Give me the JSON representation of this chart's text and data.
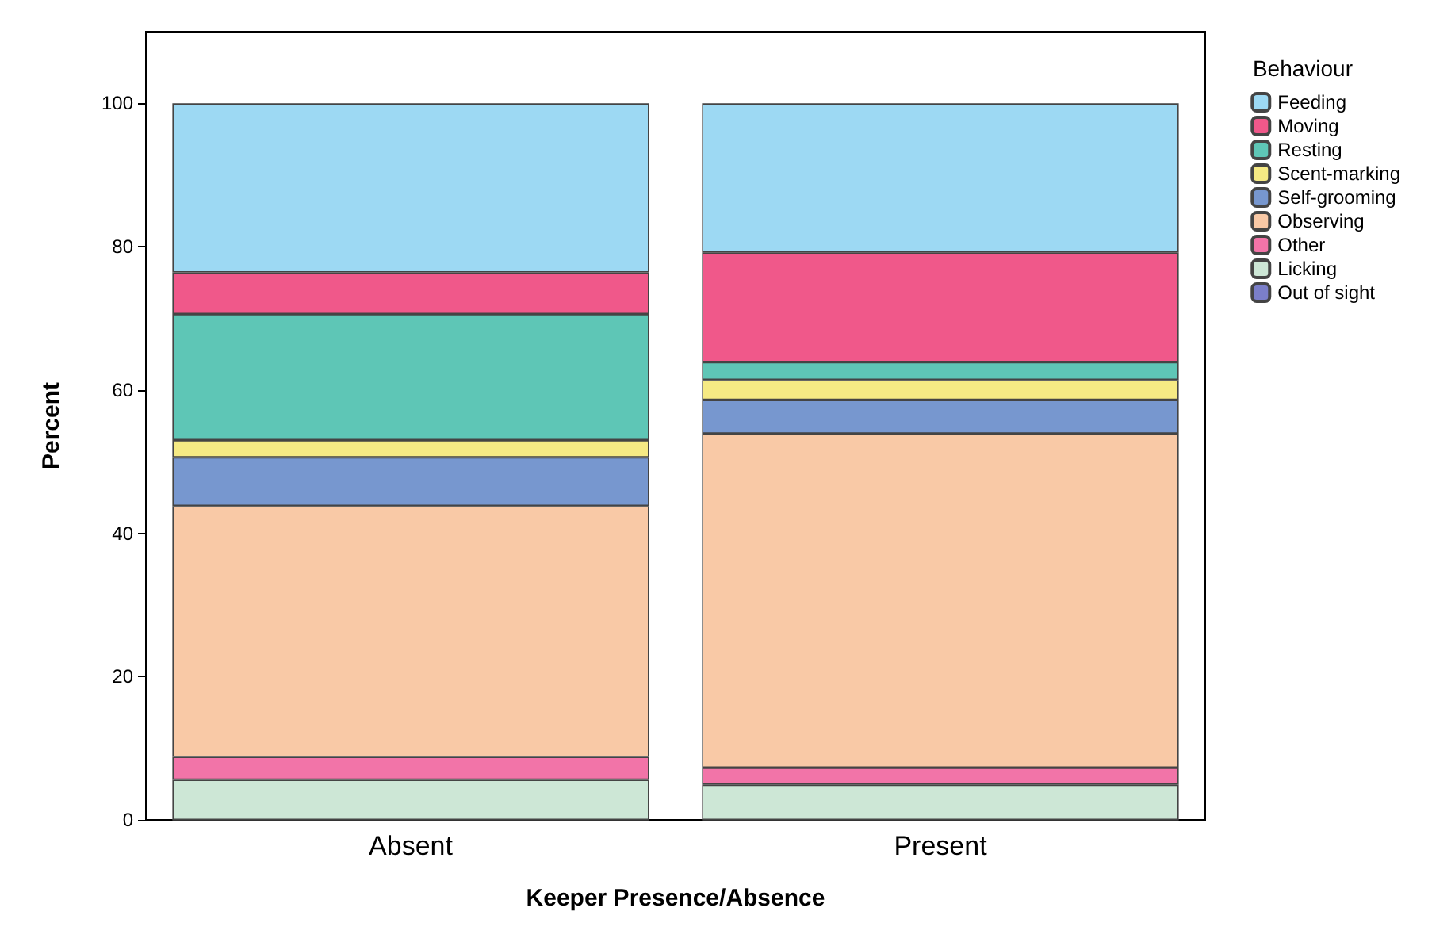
{
  "chart_data": {
    "type": "bar",
    "stacked": true,
    "xlabel": "Keeper Presence/Absence",
    "ylabel": "Percent",
    "legend_title": "Behaviour",
    "legend": "top right",
    "grid": false,
    "categories": [
      "Absent",
      "Present"
    ],
    "ylim": [
      0,
      110
    ],
    "yticks": [
      0,
      20,
      40,
      60,
      80,
      100
    ],
    "series": [
      {
        "name": "Out of sight",
        "color": "#7b7fc9",
        "values": [
          0,
          0
        ]
      },
      {
        "name": "Licking",
        "color": "#cde7d6",
        "values": [
          5.6,
          4.9
        ]
      },
      {
        "name": "Other",
        "color": "#f274a8",
        "values": [
          3.2,
          2.4
        ]
      },
      {
        "name": "Observing",
        "color": "#f9c9a6",
        "values": [
          35.0,
          46.6
        ]
      },
      {
        "name": "Self-grooming",
        "color": "#7797cf",
        "values": [
          6.8,
          4.7
        ]
      },
      {
        "name": "Scent-marking",
        "color": "#f6ea84",
        "values": [
          2.4,
          2.8
        ]
      },
      {
        "name": "Resting",
        "color": "#5ec6b6",
        "values": [
          17.6,
          2.5
        ]
      },
      {
        "name": "Moving",
        "color": "#f0588a",
        "values": [
          5.8,
          15.3
        ]
      },
      {
        "name": "Feeding",
        "color": "#9dd9f3",
        "values": [
          23.6,
          20.8
        ]
      }
    ]
  }
}
